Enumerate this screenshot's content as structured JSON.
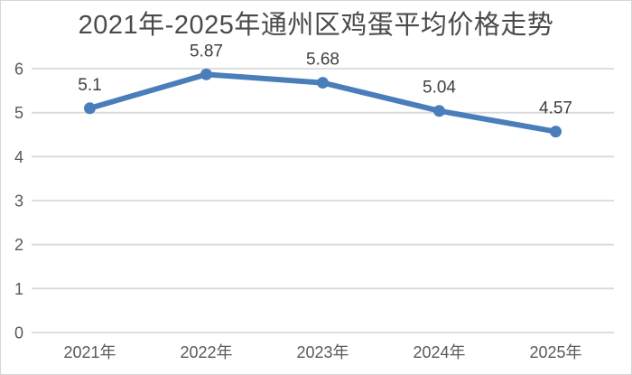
{
  "chart_data": {
    "type": "line",
    "title": "2021年-2025年通州区鸡蛋平均价格走势",
    "categories": [
      "2021年",
      "2022年",
      "2023年",
      "2024年",
      "2025年"
    ],
    "values": [
      5.1,
      5.87,
      5.68,
      5.04,
      4.57
    ],
    "data_labels": [
      "5.1",
      "5.87",
      "5.68",
      "5.04",
      "4.57"
    ],
    "y_ticks": [
      0,
      1,
      2,
      3,
      4,
      5,
      6
    ],
    "ylim": [
      0,
      6
    ],
    "xlabel": "",
    "ylabel": "",
    "grid": true,
    "legend_position": "none",
    "colors": {
      "line": "#4A7EBB",
      "marker": "#4A7EBB",
      "gridline": "#D9D9D9",
      "tick_label": "#595959",
      "data_label": "#404040",
      "title": "#4A4A4A",
      "background": "#FFFFFF",
      "border": "#D6D6D6"
    }
  }
}
